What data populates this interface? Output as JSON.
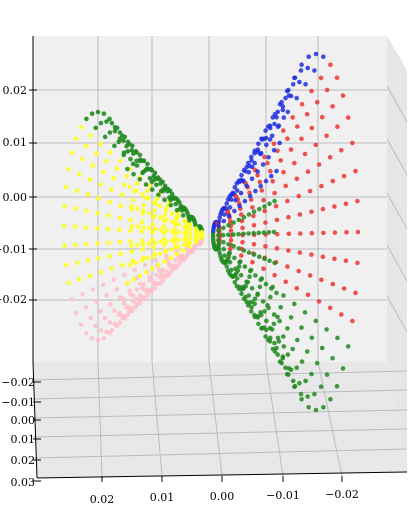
{
  "chart_data": {
    "type": "scatter",
    "title": "",
    "xlabel": "",
    "ylabel": "",
    "zlabel": "",
    "grid": true,
    "projection": "3d",
    "colors": {
      "red": "#ee3333",
      "blue": "#1f2fe0",
      "green": "#1f8a1f",
      "yellow": "#ffff22",
      "pink": "#ffc0cb",
      "grid": "#bcbcbc",
      "pane": "#ececec"
    },
    "z_axis": {
      "ticks": [
        "0.02",
        "0.01",
        "0.00",
        "−0.01",
        "−0.02"
      ]
    },
    "y_axis": {
      "ticks": [
        "−0.02",
        "−0.01",
        "0.00",
        "0.01",
        "0.02",
        "0.03"
      ]
    },
    "x_axis": {
      "ticks": [
        "0.02",
        "0.01",
        "0.00",
        "−0.01",
        "−0.02"
      ]
    },
    "series": [
      {
        "color": "red",
        "shape": "right lobe, outer half",
        "ring_count": 13
      },
      {
        "color": "blue",
        "shape": "right lobe, top arc",
        "ring_count": 13
      },
      {
        "color": "green",
        "shape": "lower band of right lobe and upper band of left lobe",
        "ring_count": 13
      },
      {
        "color": "yellow",
        "shape": "left lobe, main body",
        "ring_count": 13
      },
      {
        "color": "pink",
        "shape": "left lobe, bottom arc",
        "ring_count": 13
      }
    ]
  }
}
